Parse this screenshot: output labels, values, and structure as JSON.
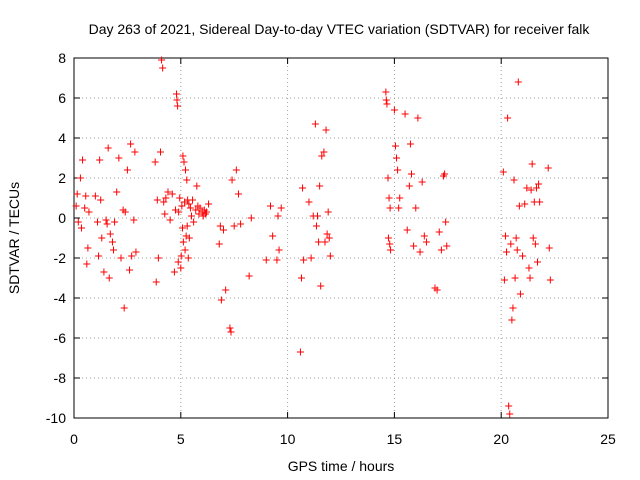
{
  "chart_data": {
    "type": "scatter",
    "title": "Day 263 of 2021, Sidereal Day-to-day VTEC variation (SDTVAR) for receiver falk",
    "xlabel": "GPS time / hours",
    "ylabel": "SDTVAR / TECUs",
    "xlim": [
      0,
      25
    ],
    "ylim": [
      -10,
      8
    ],
    "xticks": [
      0,
      5,
      10,
      15,
      20,
      25
    ],
    "yticks": [
      -10,
      -8,
      -6,
      -4,
      -2,
      0,
      2,
      4,
      6,
      8
    ],
    "grid": true,
    "marker": "plus",
    "color": "#ff0000",
    "series": [
      {
        "name": "SDTVAR",
        "points": [
          [
            0.1,
            0.6
          ],
          [
            0.15,
            1.2
          ],
          [
            0.2,
            -0.2
          ],
          [
            0.3,
            2.0
          ],
          [
            0.35,
            -0.5
          ],
          [
            0.4,
            2.9
          ],
          [
            0.5,
            0.5
          ],
          [
            0.55,
            1.1
          ],
          [
            0.6,
            -2.3
          ],
          [
            0.65,
            -1.5
          ],
          [
            0.7,
            0.3
          ],
          [
            1.0,
            1.1
          ],
          [
            1.1,
            -0.2
          ],
          [
            1.15,
            -1.9
          ],
          [
            1.2,
            2.9
          ],
          [
            1.25,
            0.9
          ],
          [
            1.3,
            -1.0
          ],
          [
            1.4,
            -2.7
          ],
          [
            1.5,
            -0.1
          ],
          [
            1.55,
            -0.3
          ],
          [
            1.6,
            3.5
          ],
          [
            1.65,
            -3.0
          ],
          [
            1.7,
            -0.8
          ],
          [
            1.8,
            -1.2
          ],
          [
            1.85,
            -1.6
          ],
          [
            1.9,
            -0.2
          ],
          [
            2.0,
            1.3
          ],
          [
            2.1,
            3.0
          ],
          [
            2.2,
            -2.0
          ],
          [
            2.3,
            0.4
          ],
          [
            2.35,
            -4.5
          ],
          [
            2.4,
            0.3
          ],
          [
            2.5,
            2.4
          ],
          [
            2.6,
            -2.6
          ],
          [
            2.65,
            3.7
          ],
          [
            2.7,
            -1.9
          ],
          [
            2.8,
            -0.1
          ],
          [
            2.85,
            3.3
          ],
          [
            2.9,
            -1.7
          ],
          [
            3.8,
            2.8
          ],
          [
            3.85,
            -3.2
          ],
          [
            3.9,
            0.9
          ],
          [
            3.95,
            -2.0
          ],
          [
            4.05,
            3.3
          ],
          [
            4.1,
            7.9
          ],
          [
            4.15,
            7.5
          ],
          [
            4.2,
            0.8
          ],
          [
            4.25,
            0.2
          ],
          [
            4.3,
            1.0
          ],
          [
            4.4,
            1.3
          ],
          [
            4.5,
            -0.1
          ],
          [
            4.6,
            1.2
          ],
          [
            4.7,
            -2.7
          ],
          [
            4.75,
            0.4
          ],
          [
            4.8,
            6.2
          ],
          [
            4.82,
            5.9
          ],
          [
            4.85,
            5.6
          ],
          [
            4.88,
            -2.2
          ],
          [
            4.9,
            0.3
          ],
          [
            4.95,
            1.0
          ],
          [
            5.0,
            -2.5
          ],
          [
            5.02,
            -1.9
          ],
          [
            5.05,
            0.6
          ],
          [
            5.08,
            -0.5
          ],
          [
            5.1,
            3.1
          ],
          [
            5.12,
            -1.2
          ],
          [
            5.15,
            2.8
          ],
          [
            5.18,
            0.8
          ],
          [
            5.2,
            -1.6
          ],
          [
            5.22,
            2.4
          ],
          [
            5.25,
            -0.9
          ],
          [
            5.28,
            1.9
          ],
          [
            5.3,
            -0.4
          ],
          [
            5.32,
            0.9
          ],
          [
            5.35,
            -2.0
          ],
          [
            5.38,
            0.7
          ],
          [
            5.4,
            -1.0
          ],
          [
            5.45,
            0.5
          ],
          [
            5.5,
            0.1
          ],
          [
            5.55,
            0.9
          ],
          [
            5.6,
            -0.2
          ],
          [
            5.7,
            0.4
          ],
          [
            5.75,
            1.6
          ],
          [
            5.8,
            0.6
          ],
          [
            5.85,
            0.2
          ],
          [
            5.9,
            0.5
          ],
          [
            6.0,
            0.3
          ],
          [
            6.05,
            0.1
          ],
          [
            6.1,
            0.4
          ],
          [
            6.15,
            0.2
          ],
          [
            6.2,
            0.3
          ],
          [
            6.3,
            0.7
          ],
          [
            6.8,
            -1.3
          ],
          [
            6.85,
            -0.4
          ],
          [
            6.9,
            -4.1
          ],
          [
            7.0,
            -0.6
          ],
          [
            7.1,
            -3.6
          ],
          [
            7.3,
            -5.5
          ],
          [
            7.35,
            -5.7
          ],
          [
            7.4,
            1.9
          ],
          [
            7.5,
            -0.4
          ],
          [
            7.6,
            2.4
          ],
          [
            7.7,
            1.2
          ],
          [
            7.8,
            -0.3
          ],
          [
            8.2,
            -2.9
          ],
          [
            8.3,
            0.0
          ],
          [
            9.0,
            -2.1
          ],
          [
            9.2,
            0.6
          ],
          [
            9.3,
            -0.9
          ],
          [
            9.5,
            -2.1
          ],
          [
            9.55,
            0.1
          ],
          [
            9.6,
            -1.6
          ],
          [
            9.7,
            0.5
          ],
          [
            10.6,
            -6.7
          ],
          [
            10.65,
            -3.0
          ],
          [
            10.7,
            1.5
          ],
          [
            10.75,
            -2.1
          ],
          [
            11.0,
            0.8
          ],
          [
            11.1,
            -2.0
          ],
          [
            11.2,
            0.1
          ],
          [
            11.3,
            4.7
          ],
          [
            11.35,
            -0.4
          ],
          [
            11.4,
            0.1
          ],
          [
            11.45,
            -1.2
          ],
          [
            11.5,
            1.6
          ],
          [
            11.55,
            -3.4
          ],
          [
            11.6,
            3.1
          ],
          [
            11.7,
            3.3
          ],
          [
            11.75,
            -1.2
          ],
          [
            11.8,
            4.4
          ],
          [
            11.85,
            -0.8
          ],
          [
            11.9,
            0.3
          ],
          [
            11.95,
            -1.0
          ],
          [
            12.0,
            -1.9
          ],
          [
            14.6,
            6.3
          ],
          [
            14.62,
            5.9
          ],
          [
            14.65,
            5.7
          ],
          [
            14.7,
            2.0
          ],
          [
            14.72,
            -1.0
          ],
          [
            14.75,
            1.0
          ],
          [
            14.78,
            -1.3
          ],
          [
            14.8,
            0.5
          ],
          [
            14.82,
            -1.6
          ],
          [
            15.0,
            5.4
          ],
          [
            15.05,
            3.6
          ],
          [
            15.1,
            3.0
          ],
          [
            15.15,
            2.4
          ],
          [
            15.2,
            0.5
          ],
          [
            15.25,
            1.0
          ],
          [
            15.5,
            5.2
          ],
          [
            15.6,
            -0.6
          ],
          [
            15.7,
            1.6
          ],
          [
            15.75,
            3.7
          ],
          [
            15.8,
            2.2
          ],
          [
            15.9,
            -1.4
          ],
          [
            16.0,
            0.5
          ],
          [
            16.1,
            5.0
          ],
          [
            16.2,
            -1.7
          ],
          [
            16.3,
            1.8
          ],
          [
            16.4,
            -0.9
          ],
          [
            16.5,
            -1.2
          ],
          [
            16.9,
            -3.5
          ],
          [
            17.0,
            -3.6
          ],
          [
            17.1,
            -0.7
          ],
          [
            17.2,
            -1.6
          ],
          [
            17.3,
            2.1
          ],
          [
            17.35,
            2.2
          ],
          [
            17.4,
            -0.2
          ],
          [
            17.45,
            -1.4
          ],
          [
            20.1,
            2.3
          ],
          [
            20.15,
            -3.1
          ],
          [
            20.2,
            -0.9
          ],
          [
            20.25,
            -1.7
          ],
          [
            20.3,
            5.0
          ],
          [
            20.35,
            -9.4
          ],
          [
            20.4,
            -9.8
          ],
          [
            20.45,
            -1.3
          ],
          [
            20.5,
            -5.1
          ],
          [
            20.55,
            -4.5
          ],
          [
            20.6,
            1.9
          ],
          [
            20.65,
            -3.0
          ],
          [
            20.7,
            -1.0
          ],
          [
            20.75,
            -1.6
          ],
          [
            20.8,
            6.8
          ],
          [
            20.85,
            0.6
          ],
          [
            20.9,
            -3.8
          ],
          [
            21.0,
            -1.9
          ],
          [
            21.1,
            0.7
          ],
          [
            21.2,
            1.5
          ],
          [
            21.3,
            -2.5
          ],
          [
            21.35,
            -3.0
          ],
          [
            21.4,
            1.4
          ],
          [
            21.45,
            2.7
          ],
          [
            21.5,
            -1.0
          ],
          [
            21.55,
            0.8
          ],
          [
            21.6,
            -1.3
          ],
          [
            21.65,
            1.5
          ],
          [
            21.7,
            -2.2
          ],
          [
            21.75,
            1.7
          ],
          [
            21.8,
            0.8
          ],
          [
            22.2,
            2.5
          ],
          [
            22.25,
            -1.5
          ],
          [
            22.3,
            -3.1
          ]
        ]
      }
    ]
  }
}
